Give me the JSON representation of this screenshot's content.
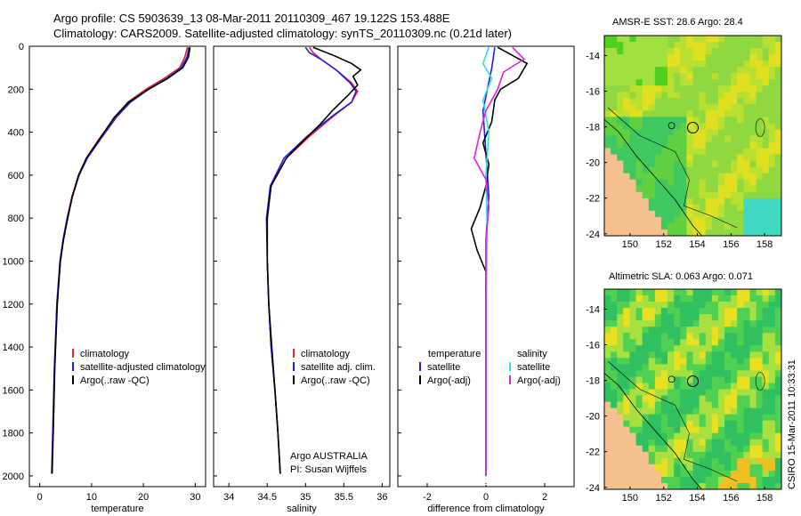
{
  "header": {
    "line1": "Argo profile: CS 5903639_13 08-Mar-2011 20110309_467 19.122S 153.488E",
    "line2": "Climatology: CARS2009. Satellite-adjusted climatology: synTS_20110309.nc (0.21d later)"
  },
  "credit": "CSIRO 15-Mar-2011 10:33:31",
  "colors": {
    "red": "#e8222a",
    "blue": "#2020e0",
    "black": "#000000",
    "cyan": "#30e0e8",
    "magenta": "#e020e0"
  },
  "depth_axis": {
    "ticks": [
      "0",
      "200",
      "400",
      "600",
      "800",
      "1000",
      "1200",
      "1400",
      "1600",
      "1800",
      "2000"
    ]
  },
  "chart_data": [
    {
      "id": "temperature",
      "type": "line",
      "xlabel": "temperature",
      "xlim": [
        -2,
        32
      ],
      "xticks": [
        "0",
        "10",
        "20",
        "30"
      ],
      "xtick_values": [
        0,
        10,
        20,
        30
      ],
      "ylim": [
        0,
        2050
      ],
      "legend": [
        "climatology",
        "satellite-adjusted climatology",
        "Argo(..raw -QC)"
      ],
      "series": [
        {
          "name": "climatology",
          "color": "red",
          "x": [
            28.5,
            28.0,
            27.0,
            24.0,
            20.5,
            17.0,
            14.5,
            11.5,
            9.0,
            7.5,
            6.2,
            5.3,
            4.5,
            3.9,
            3.3,
            2.9,
            2.6
          ],
          "y": [
            5,
            50,
            100,
            150,
            200,
            260,
            330,
            430,
            520,
            600,
            700,
            800,
            900,
            1000,
            1200,
            1500,
            1800
          ]
        },
        {
          "name": "satellite-adjusted climatology",
          "color": "blue",
          "x": [
            28.8,
            28.4,
            27.3,
            24.5,
            21.0,
            17.5,
            14.8,
            11.8,
            9.2,
            7.6,
            6.3,
            5.3,
            4.5,
            3.9,
            3.3,
            2.8,
            2.5,
            2.3
          ],
          "y": [
            5,
            50,
            100,
            150,
            200,
            260,
            330,
            430,
            520,
            600,
            700,
            800,
            900,
            1000,
            1200,
            1500,
            1800,
            1990
          ]
        },
        {
          "name": "Argo(..raw -QC)",
          "color": "black",
          "x": [
            29.0,
            28.7,
            27.6,
            24.7,
            21.0,
            17.2,
            14.4,
            11.6,
            9.0,
            7.5,
            6.3,
            5.4,
            4.6,
            4.0,
            3.4,
            2.9,
            2.6,
            2.4
          ],
          "y": [
            5,
            50,
            100,
            150,
            200,
            260,
            330,
            430,
            520,
            600,
            700,
            800,
            900,
            1000,
            1200,
            1500,
            1800,
            1990
          ]
        }
      ]
    },
    {
      "id": "salinity",
      "type": "line",
      "xlabel": "salinity",
      "xlim": [
        33.8,
        36.1
      ],
      "xticks": [
        "34",
        "34.5",
        "35",
        "35.5",
        "36"
      ],
      "xtick_values": [
        34,
        34.5,
        35,
        35.5,
        36
      ],
      "ylim": [
        0,
        2050
      ],
      "legend": [
        "climatology",
        "satellite adj. clim.",
        "Argo(..raw -QC)"
      ],
      "annotation": [
        "Argo AUSTRALIA",
        "PI: Susan Wijffels"
      ],
      "series": [
        {
          "name": "climatology",
          "color": "red",
          "x": [
            35.05,
            35.1,
            35.2,
            35.4,
            35.6,
            35.68,
            35.6,
            35.35,
            35.05,
            34.75,
            34.55,
            34.5,
            34.5,
            34.52,
            34.55,
            34.6,
            34.64,
            34.67
          ],
          "y": [
            5,
            30,
            60,
            110,
            170,
            210,
            260,
            330,
            420,
            520,
            650,
            800,
            1000,
            1200,
            1400,
            1600,
            1800,
            1990
          ]
        },
        {
          "name": "satellite adj. clim.",
          "color": "blue",
          "x": [
            35.0,
            35.05,
            35.2,
            35.4,
            35.58,
            35.66,
            35.6,
            35.33,
            35.02,
            34.72,
            34.54,
            34.49,
            34.5,
            34.52,
            34.55,
            34.6,
            34.64,
            34.67
          ],
          "y": [
            5,
            30,
            60,
            110,
            170,
            210,
            260,
            330,
            420,
            520,
            650,
            800,
            1000,
            1200,
            1400,
            1600,
            1800,
            1990
          ]
        },
        {
          "name": "Argo(..raw -QC)",
          "color": "black",
          "x": [
            35.1,
            35.35,
            35.6,
            35.72,
            35.62,
            35.68,
            35.55,
            35.35,
            35.2,
            35.0,
            34.75,
            34.55,
            34.5,
            34.5,
            34.52,
            34.56,
            34.6,
            34.64,
            34.67
          ],
          "y": [
            5,
            40,
            80,
            110,
            140,
            180,
            230,
            300,
            360,
            430,
            520,
            650,
            800,
            1000,
            1200,
            1400,
            1600,
            1800,
            1990
          ]
        }
      ]
    },
    {
      "id": "difference",
      "type": "line",
      "xlabel": "difference from climatology",
      "xlim": [
        -3,
        3
      ],
      "xticks": [
        "-2",
        "0",
        "2"
      ],
      "xtick_values": [
        -2,
        0,
        2
      ],
      "ylim": [
        0,
        2050
      ],
      "legend_temperature_title": "temperature",
      "legend_salinity_title": "salinity",
      "legend_temperature": [
        "satellite",
        "Argo(-adj)"
      ],
      "legend_salinity": [
        "satellite",
        "Argo(-adj)"
      ],
      "series": [
        {
          "name": "temperature satellite",
          "color": "blue",
          "x": [
            0.3,
            0.2,
            -0.1,
            0.0,
            0.1,
            0.0,
            0.0,
            0.0,
            0.0,
            0.0,
            0.0
          ],
          "y": [
            5,
            100,
            300,
            500,
            700,
            900,
            1200,
            1500,
            1800,
            1990,
            2000
          ]
        },
        {
          "name": "temperature Argo(-adj)",
          "color": "black",
          "x": [
            0.4,
            1.4,
            1.1,
            0.5,
            0.3,
            0.2,
            -0.1,
            0.1,
            0.0,
            -0.2,
            -0.5,
            -0.3,
            0.0,
            0.0,
            0.0,
            0.0
          ],
          "y": [
            5,
            80,
            150,
            200,
            250,
            350,
            450,
            550,
            650,
            750,
            850,
            950,
            1050,
            1300,
            1600,
            1990
          ]
        },
        {
          "name": "salinity satellite",
          "color": "cyan",
          "x": [
            0.1,
            -0.1,
            0.2,
            -0.1,
            0.1,
            0.0,
            0.05,
            0.0,
            0.0,
            0.0
          ],
          "y": [
            5,
            80,
            150,
            250,
            400,
            600,
            900,
            1200,
            1600,
            1990
          ]
        },
        {
          "name": "salinity Argo(-adj)",
          "color": "magenta",
          "x": [
            0.9,
            1.3,
            0.6,
            0.4,
            0.0,
            -0.2,
            -0.4,
            0.0,
            0.1,
            0.0,
            0.0,
            0.0
          ],
          "y": [
            5,
            60,
            120,
            200,
            300,
            400,
            520,
            620,
            750,
            900,
            1300,
            1990
          ]
        }
      ]
    }
  ],
  "maps": [
    {
      "id": "sst",
      "title": "AMSR-E SST: 28.6 Argo: 28.4",
      "yticks": [
        "-14",
        "-16",
        "-18",
        "-20",
        "-22",
        "-24"
      ],
      "xticks": [
        "150",
        "152",
        "154",
        "156",
        "158"
      ]
    },
    {
      "id": "sla",
      "title": "Altimetric SLA: 0.063 Argo: 0.071",
      "yticks": [
        "-14",
        "-16",
        "-18",
        "-20",
        "-22",
        "-24"
      ],
      "xticks": [
        "150",
        "152",
        "154",
        "156",
        "158"
      ]
    }
  ]
}
